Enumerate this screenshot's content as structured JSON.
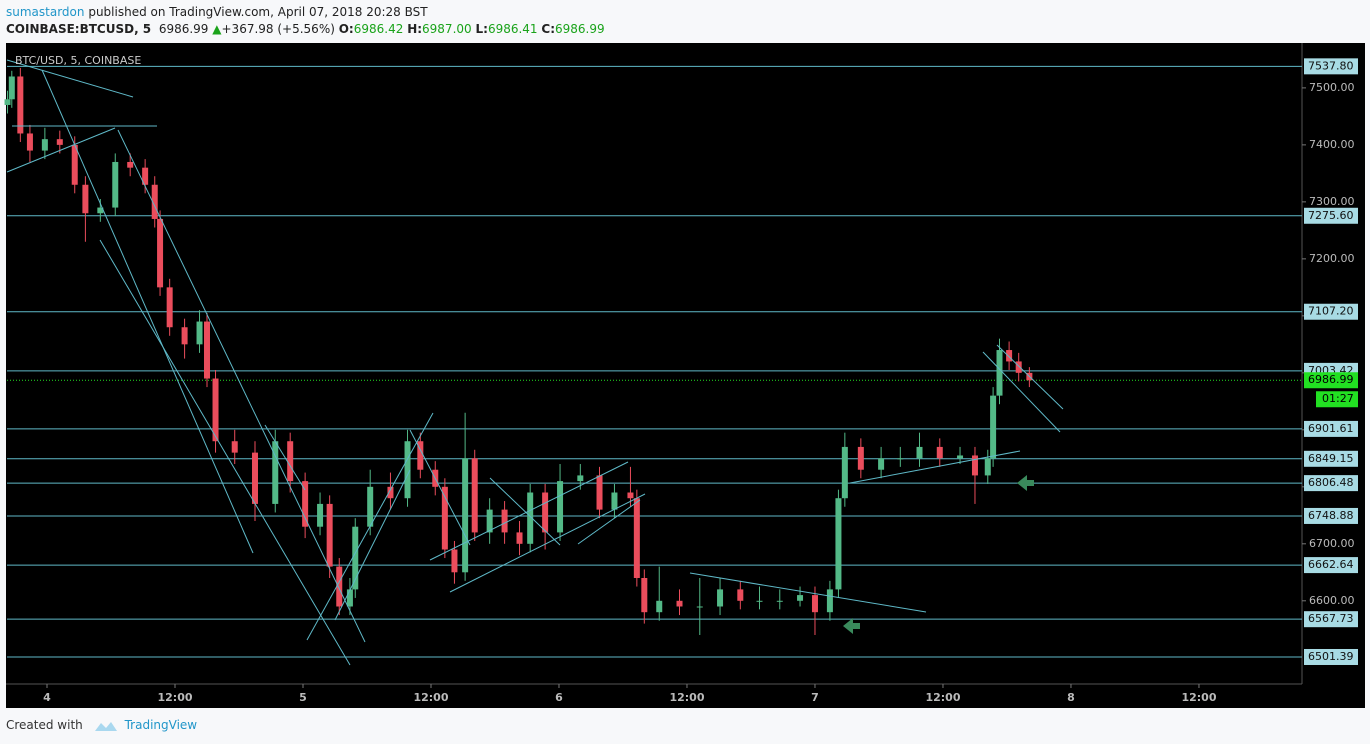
{
  "header": {
    "author": "sumastardon",
    "published": "published on TradingView.com, April 07, 2018 20:28 BST",
    "symbol": "COINBASE:BTCUSD, 5",
    "last": "6986.99",
    "arrow": "▲",
    "change": "+367.98 (+5.56%)",
    "o_label": "O:",
    "o": "6986.42",
    "h_label": "H:",
    "h": "6987.00",
    "l_label": "L:",
    "l": "6986.41",
    "c_label": "C:",
    "c": "6986.99"
  },
  "footer": {
    "created": "Created with",
    "brand": "TradingView"
  },
  "chart_data": {
    "type": "candlestick",
    "title": "BTC/USD, 5, COINBASE",
    "up_color": "#53b987",
    "down_color": "#eb4d5c",
    "level_color": "#5fb9c8",
    "current_color": "#22e022",
    "xlim": [
      -3.75,
      117.66
    ],
    "ylim": [
      6454,
      7577
    ],
    "xticks": [
      {
        "value": 0,
        "label": "4"
      },
      {
        "value": 12,
        "label": "12:00"
      },
      {
        "value": 24,
        "label": "5"
      },
      {
        "value": 36,
        "label": "12:00"
      },
      {
        "value": 48,
        "label": "6"
      },
      {
        "value": 60,
        "label": "12:00"
      },
      {
        "value": 72,
        "label": "7"
      },
      {
        "value": 84,
        "label": "12:00"
      },
      {
        "value": 96,
        "label": "8"
      },
      {
        "value": 108,
        "label": "12:00"
      }
    ],
    "yticks": [
      {
        "value": 6600,
        "label": "6600.00"
      },
      {
        "value": 6700,
        "label": "6700.00"
      },
      {
        "value": 6800,
        "label": "6800.00"
      },
      {
        "value": 6900,
        "label": "6900.00"
      },
      {
        "value": 7000,
        "label": "7000.00"
      },
      {
        "value": 7100,
        "label": "7100.00"
      },
      {
        "value": 7200,
        "label": "7200.00"
      },
      {
        "value": 7300,
        "label": "7300.00"
      },
      {
        "value": 7400,
        "label": "7400.00"
      },
      {
        "value": 7500,
        "label": "7500.00"
      }
    ],
    "levels": [
      {
        "value": 7537.8,
        "label": "7537.80"
      },
      {
        "value": 7275.6,
        "label": "7275.60"
      },
      {
        "value": 7107.2,
        "label": "7107.20"
      },
      {
        "value": 7003.42,
        "label": "7003.42"
      },
      {
        "value": 6901.61,
        "label": "6901.61"
      },
      {
        "value": 6849.15,
        "label": "6849.15"
      },
      {
        "value": 6806.48,
        "label": "6806.48"
      },
      {
        "value": 6748.88,
        "label": "6748.88"
      },
      {
        "value": 6662.64,
        "label": "6662.64"
      },
      {
        "value": 6567.73,
        "label": "6567.73"
      },
      {
        "value": 6501.39,
        "label": "6501.39"
      }
    ],
    "current_price": 6986.99,
    "countdown": "01:27",
    "candles": [
      {
        "x": -3.7,
        "open": 7470,
        "high": 7495,
        "low": 7455,
        "close": 7480
      },
      {
        "x": -3.3,
        "open": 7480,
        "high": 7530,
        "low": 7465,
        "close": 7520
      },
      {
        "x": -2.5,
        "open": 7520,
        "high": 7535,
        "low": 7405,
        "close": 7420
      },
      {
        "x": -1.6,
        "open": 7420,
        "high": 7435,
        "low": 7370,
        "close": 7390
      },
      {
        "x": -0.2,
        "open": 7390,
        "high": 7430,
        "low": 7375,
        "close": 7410
      },
      {
        "x": 1.2,
        "open": 7410,
        "high": 7425,
        "low": 7385,
        "close": 7400
      },
      {
        "x": 2.6,
        "open": 7400,
        "high": 7415,
        "low": 7315,
        "close": 7330
      },
      {
        "x": 3.6,
        "open": 7330,
        "high": 7345,
        "low": 7230,
        "close": 7280
      },
      {
        "x": 5.0,
        "open": 7280,
        "high": 7305,
        "low": 7265,
        "close": 7290
      },
      {
        "x": 6.4,
        "open": 7290,
        "high": 7385,
        "low": 7275,
        "close": 7370
      },
      {
        "x": 7.8,
        "open": 7370,
        "high": 7385,
        "low": 7345,
        "close": 7360
      },
      {
        "x": 9.2,
        "open": 7360,
        "high": 7375,
        "low": 7315,
        "close": 7330
      },
      {
        "x": 10.1,
        "open": 7330,
        "high": 7345,
        "low": 7255,
        "close": 7270
      },
      {
        "x": 10.6,
        "open": 7270,
        "high": 7285,
        "low": 7135,
        "close": 7150
      },
      {
        "x": 11.5,
        "open": 7150,
        "high": 7165,
        "low": 7065,
        "close": 7080
      },
      {
        "x": 12.9,
        "open": 7080,
        "high": 7095,
        "low": 7025,
        "close": 7050
      },
      {
        "x": 14.3,
        "open": 7050,
        "high": 7110,
        "low": 7035,
        "close": 7090
      },
      {
        "x": 15.0,
        "open": 7090,
        "high": 7105,
        "low": 6975,
        "close": 6990
      },
      {
        "x": 15.8,
        "open": 6990,
        "high": 7005,
        "low": 6860,
        "close": 6880
      },
      {
        "x": 17.6,
        "open": 6880,
        "high": 6900,
        "low": 6840,
        "close": 6860
      },
      {
        "x": 19.5,
        "open": 6860,
        "high": 6880,
        "low": 6740,
        "close": 6770
      },
      {
        "x": 21.4,
        "open": 6770,
        "high": 6900,
        "low": 6755,
        "close": 6880
      },
      {
        "x": 22.8,
        "open": 6880,
        "high": 6895,
        "low": 6790,
        "close": 6810
      },
      {
        "x": 24.2,
        "open": 6810,
        "high": 6825,
        "low": 6710,
        "close": 6730
      },
      {
        "x": 25.6,
        "open": 6730,
        "high": 6790,
        "low": 6715,
        "close": 6770
      },
      {
        "x": 26.5,
        "open": 6770,
        "high": 6785,
        "low": 6640,
        "close": 6660
      },
      {
        "x": 27.4,
        "open": 6660,
        "high": 6675,
        "low": 6575,
        "close": 6590
      },
      {
        "x": 28.4,
        "open": 6590,
        "high": 6640,
        "low": 6575,
        "close": 6620
      },
      {
        "x": 28.9,
        "open": 6620,
        "high": 6745,
        "low": 6605,
        "close": 6730
      },
      {
        "x": 30.3,
        "open": 6730,
        "high": 6830,
        "low": 6715,
        "close": 6800
      },
      {
        "x": 32.2,
        "open": 6800,
        "high": 6825,
        "low": 6760,
        "close": 6780
      },
      {
        "x": 33.8,
        "open": 6780,
        "high": 6900,
        "low": 6765,
        "close": 6880
      },
      {
        "x": 35.0,
        "open": 6880,
        "high": 6895,
        "low": 6815,
        "close": 6830
      },
      {
        "x": 36.4,
        "open": 6830,
        "high": 6845,
        "low": 6785,
        "close": 6800
      },
      {
        "x": 37.3,
        "open": 6800,
        "high": 6815,
        "low": 6675,
        "close": 6690
      },
      {
        "x": 38.2,
        "open": 6690,
        "high": 6705,
        "low": 6630,
        "close": 6650
      },
      {
        "x": 39.2,
        "open": 6650,
        "high": 6930,
        "low": 6635,
        "close": 6850
      },
      {
        "x": 40.1,
        "open": 6850,
        "high": 6865,
        "low": 6705,
        "close": 6720
      },
      {
        "x": 41.5,
        "open": 6720,
        "high": 6780,
        "low": 6700,
        "close": 6760
      },
      {
        "x": 42.9,
        "open": 6760,
        "high": 6775,
        "low": 6700,
        "close": 6720
      },
      {
        "x": 44.3,
        "open": 6720,
        "high": 6740,
        "low": 6680,
        "close": 6700
      },
      {
        "x": 45.3,
        "open": 6700,
        "high": 6805,
        "low": 6685,
        "close": 6790
      },
      {
        "x": 46.7,
        "open": 6790,
        "high": 6805,
        "low": 6690,
        "close": 6720
      },
      {
        "x": 48.1,
        "open": 6720,
        "high": 6840,
        "low": 6705,
        "close": 6810
      },
      {
        "x": 50.0,
        "open": 6810,
        "high": 6840,
        "low": 6795,
        "close": 6820
      },
      {
        "x": 51.8,
        "open": 6820,
        "high": 6835,
        "low": 6745,
        "close": 6760
      },
      {
        "x": 53.2,
        "open": 6760,
        "high": 6805,
        "low": 6745,
        "close": 6790
      },
      {
        "x": 54.7,
        "open": 6790,
        "high": 6835,
        "low": 6765,
        "close": 6780
      },
      {
        "x": 55.3,
        "open": 6780,
        "high": 6795,
        "low": 6625,
        "close": 6640
      },
      {
        "x": 56.0,
        "open": 6640,
        "high": 6655,
        "low": 6560,
        "close": 6580
      },
      {
        "x": 57.4,
        "open": 6580,
        "high": 6660,
        "low": 6565,
        "close": 6600
      },
      {
        "x": 59.3,
        "open": 6600,
        "high": 6620,
        "low": 6575,
        "close": 6590
      },
      {
        "x": 61.2,
        "open": 6590,
        "high": 6640,
        "low": 6540,
        "close": 6590
      },
      {
        "x": 63.1,
        "open": 6590,
        "high": 6640,
        "low": 6575,
        "close": 6620
      },
      {
        "x": 65.0,
        "open": 6620,
        "high": 6635,
        "low": 6585,
        "close": 6600
      },
      {
        "x": 66.8,
        "open": 6600,
        "high": 6625,
        "low": 6585,
        "close": 6600
      },
      {
        "x": 68.7,
        "open": 6600,
        "high": 6620,
        "low": 6585,
        "close": 6600
      },
      {
        "x": 70.6,
        "open": 6600,
        "high": 6625,
        "low": 6590,
        "close": 6610
      },
      {
        "x": 72.0,
        "open": 6610,
        "high": 6625,
        "low": 6540,
        "close": 6580
      },
      {
        "x": 73.4,
        "open": 6580,
        "high": 6635,
        "low": 6565,
        "close": 6620
      },
      {
        "x": 74.2,
        "open": 6620,
        "high": 6795,
        "low": 6605,
        "close": 6780
      },
      {
        "x": 74.8,
        "open": 6780,
        "high": 6895,
        "low": 6765,
        "close": 6870
      },
      {
        "x": 76.3,
        "open": 6870,
        "high": 6885,
        "low": 6815,
        "close": 6830
      },
      {
        "x": 78.2,
        "open": 6830,
        "high": 6870,
        "low": 6815,
        "close": 6850
      },
      {
        "x": 80.0,
        "open": 6850,
        "high": 6870,
        "low": 6835,
        "close": 6850
      },
      {
        "x": 81.8,
        "open": 6850,
        "high": 6895,
        "low": 6835,
        "close": 6870
      },
      {
        "x": 83.7,
        "open": 6870,
        "high": 6885,
        "low": 6835,
        "close": 6850
      },
      {
        "x": 85.6,
        "open": 6850,
        "high": 6870,
        "low": 6840,
        "close": 6855
      },
      {
        "x": 87.0,
        "open": 6855,
        "high": 6870,
        "low": 6770,
        "close": 6820
      },
      {
        "x": 88.2,
        "open": 6820,
        "high": 6865,
        "low": 6805,
        "close": 6850
      },
      {
        "x": 88.7,
        "open": 6850,
        "high": 6975,
        "low": 6835,
        "close": 6960
      },
      {
        "x": 89.3,
        "open": 6960,
        "high": 7060,
        "low": 6945,
        "close": 7040
      },
      {
        "x": 90.2,
        "open": 7040,
        "high": 7055,
        "low": 7005,
        "close": 7020
      },
      {
        "x": 91.1,
        "open": 7020,
        "high": 7035,
        "low": 6985,
        "close": 7000
      },
      {
        "x": 92.1,
        "open": 7000,
        "high": 7010,
        "low": 6975,
        "close": 6987
      }
    ]
  }
}
